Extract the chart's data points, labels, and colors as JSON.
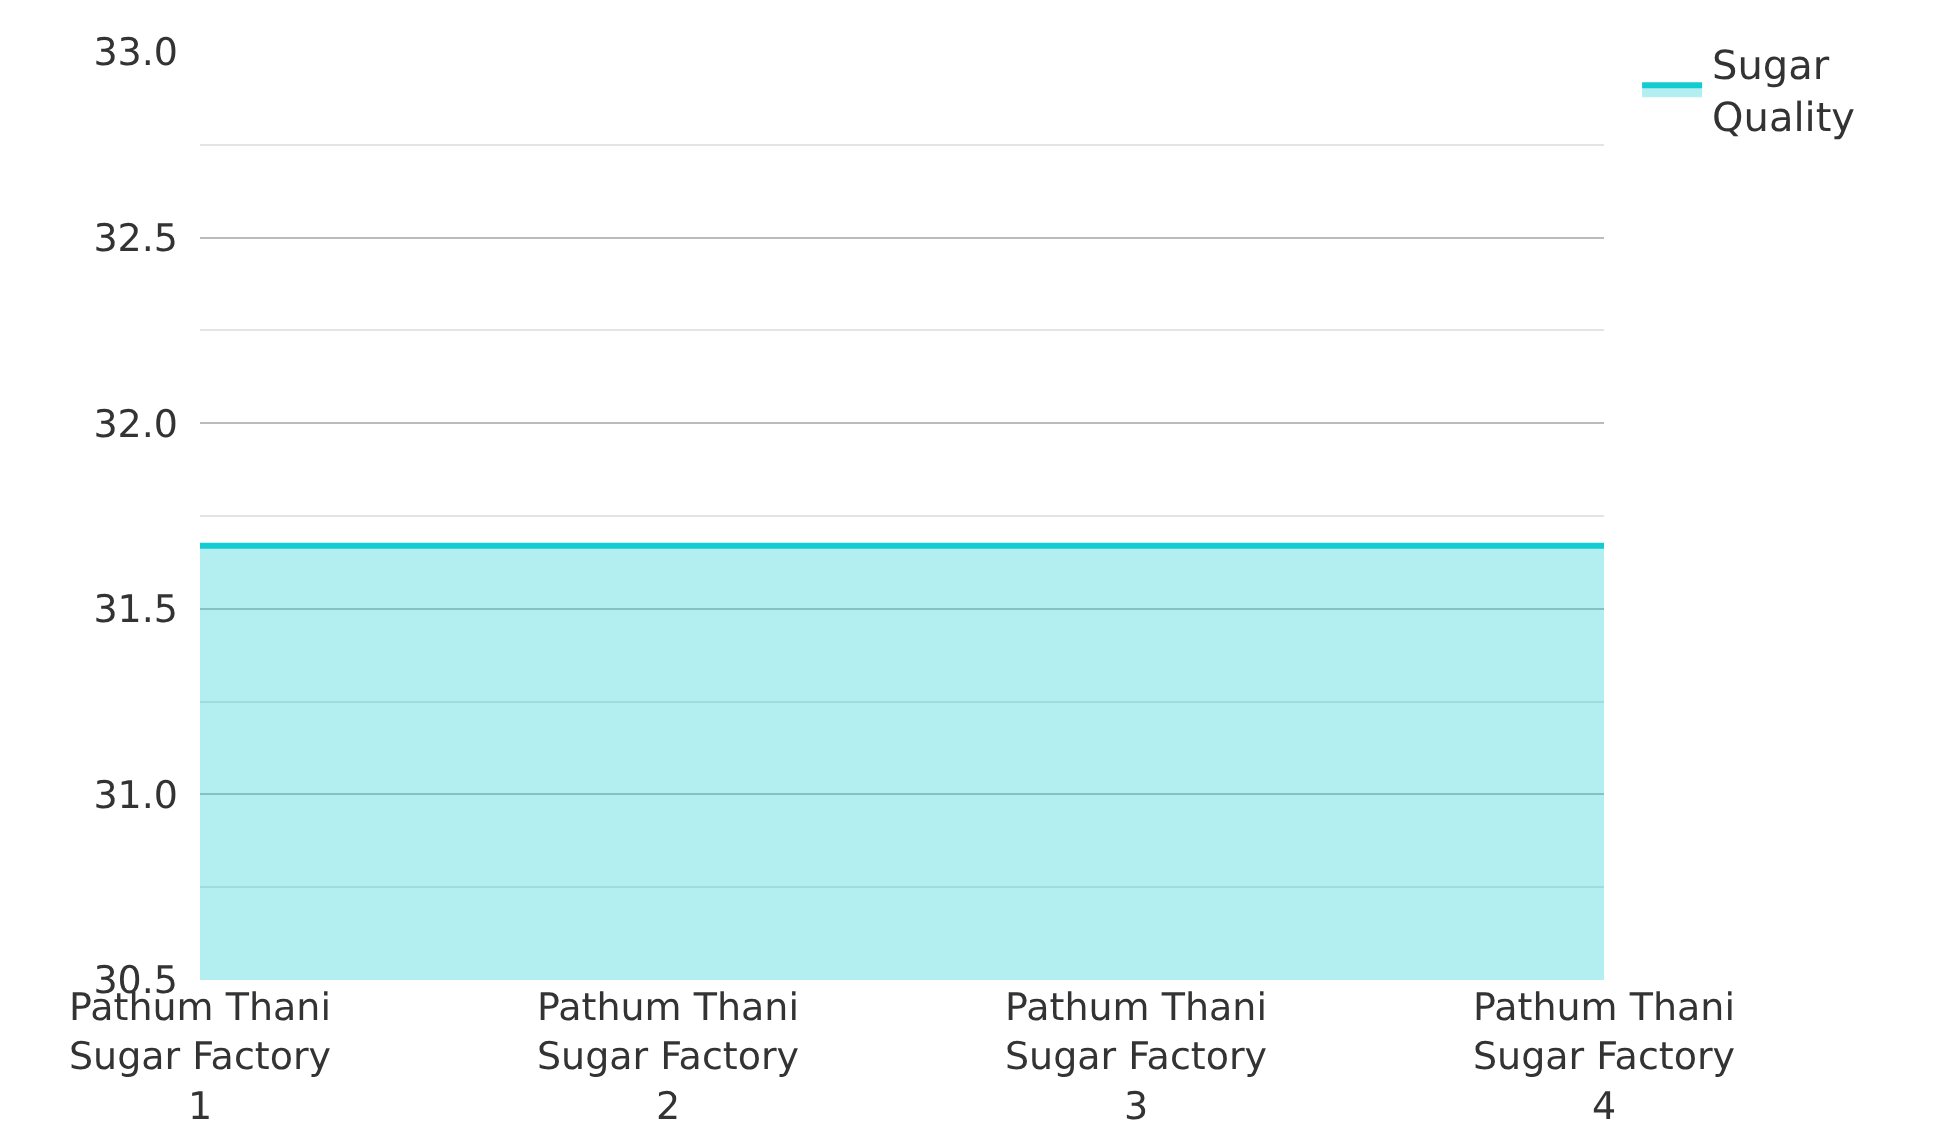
{
  "chart_data": {
    "type": "area",
    "categories": [
      "Pathum Thani Sugar Factory 1",
      "Pathum Thani Sugar Factory 2",
      "Pathum Thani Sugar Factory 3",
      "Pathum Thani Sugar Factory 4"
    ],
    "series": [
      {
        "name": "Sugar Quality",
        "color": "#12ccd2",
        "values": [
          31.67,
          31.67,
          31.67,
          31.67
        ]
      }
    ],
    "ylim": [
      30.5,
      33.0
    ],
    "yticks": [
      {
        "value": 30.5,
        "label": "30.5"
      },
      {
        "value": 31,
        "label": "31.0"
      },
      {
        "value": 31.5,
        "label": "31.5"
      },
      {
        "value": 32,
        "label": "32.0"
      },
      {
        "value": 32.5,
        "label": "32.5"
      },
      {
        "value": 33,
        "label": "33.0"
      }
    ],
    "grid": "y",
    "legend": "top right",
    "marker": "none",
    "line_style": "solid"
  }
}
